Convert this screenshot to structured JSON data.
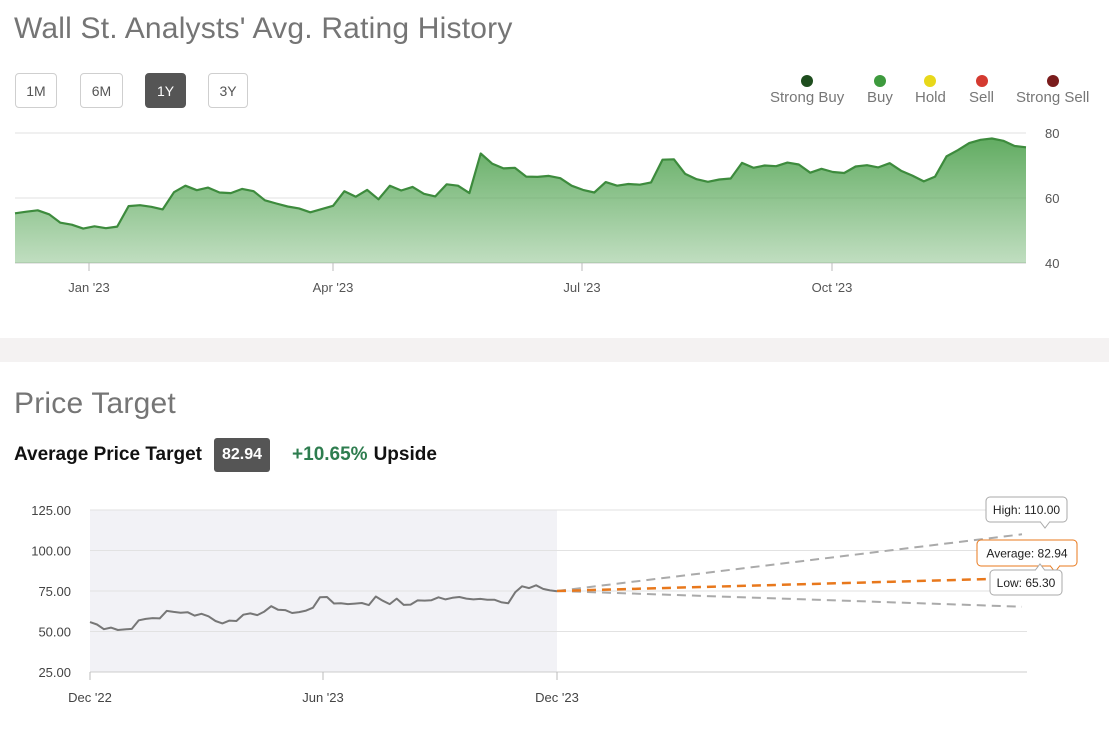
{
  "rating_history": {
    "title": "Wall St. Analysts' Avg. Rating History",
    "ranges": [
      {
        "label": "1M",
        "active": false
      },
      {
        "label": "6M",
        "active": false
      },
      {
        "label": "1Y",
        "active": true
      },
      {
        "label": "3Y",
        "active": false
      }
    ],
    "legend": [
      {
        "label": "Strong Buy",
        "color": "#1e4d1e",
        "icon": "dot"
      },
      {
        "label": "Buy",
        "color": "#3d9a3d",
        "icon": "dot"
      },
      {
        "label": "Hold",
        "color": "#e8d81a",
        "icon": "dot"
      },
      {
        "label": "Sell",
        "color": "#d43a30",
        "icon": "dot"
      },
      {
        "label": "Strong Sell",
        "color": "#7a1c1c",
        "icon": "dot"
      }
    ]
  },
  "price_target": {
    "title": "Price Target",
    "average_label": "Average Price Target",
    "average_value": "82.94",
    "upside_pct": "+10.65%",
    "upside_word": "Upside"
  },
  "chart_data": [
    {
      "type": "area",
      "x_ticks": [
        "Jan '23",
        "Apr '23",
        "Jul '23",
        "Oct '23"
      ],
      "y_ticks": [
        "40",
        "60",
        "80"
      ],
      "ylim": [
        40,
        80
      ],
      "color": "#3d8b3d",
      "values": [
        55.3,
        55.8,
        56.2,
        55.0,
        52.4,
        51.8,
        50.6,
        51.3,
        50.7,
        51.2,
        57.5,
        57.8,
        57.3,
        56.5,
        61.8,
        63.8,
        62.4,
        63.2,
        61.7,
        61.5,
        62.8,
        62.1,
        59.3,
        58.3,
        57.4,
        56.8,
        55.6,
        56.6,
        57.6,
        62.1,
        60.4,
        62.5,
        59.6,
        63.8,
        62.3,
        63.4,
        61.3,
        60.5,
        64.2,
        63.8,
        61.5,
        73.7,
        70.6,
        69.1,
        69.3,
        66.6,
        66.5,
        66.8,
        66.1,
        63.8,
        62.5,
        61.7,
        64.9,
        63.8,
        64.3,
        64.1,
        64.8,
        71.8,
        71.9,
        67.4,
        65.8,
        65.0,
        65.7,
        66.0,
        70.8,
        69.3,
        70.0,
        69.8,
        70.9,
        70.3,
        67.8,
        69.0,
        68.0,
        67.7,
        69.7,
        70.1,
        69.4,
        70.7,
        68.4,
        66.9,
        65.1,
        66.6,
        72.8,
        74.7,
        76.9,
        77.9,
        78.3,
        77.6,
        76.0,
        75.6
      ]
    },
    {
      "type": "line",
      "x_ticks": [
        "Dec '22",
        "Jun '23",
        "Dec '23"
      ],
      "y_ticks": [
        "25.00",
        "50.00",
        "75.00",
        "100.00",
        "125.00"
      ],
      "ylim": [
        25,
        125
      ],
      "series": [
        {
          "color": "#777777",
          "values": [
            55.8,
            54.3,
            51.4,
            52.4,
            50.9,
            51.3,
            51.6,
            56.9,
            57.8,
            58.3,
            58.1,
            62.7,
            62.1,
            61.6,
            61.9,
            59.8,
            60.9,
            59.4,
            56.5,
            55.0,
            56.7,
            56.5,
            60.4,
            61.2,
            60.1,
            62.3,
            65.6,
            63.4,
            63.2,
            61.4,
            62.0,
            62.9,
            64.7,
            71.2,
            71.3,
            67.3,
            67.4,
            66.9,
            67.2,
            67.6,
            66.3,
            71.6,
            69.0,
            66.9,
            70.3,
            66.4,
            66.6,
            69.2,
            69.1,
            69.3,
            71.1,
            69.8,
            70.8,
            71.3,
            70.3,
            69.8,
            70.1,
            69.6,
            69.6,
            68.1,
            67.4,
            74.2,
            77.9,
            76.8,
            78.5,
            76.3,
            75.4,
            74.9
          ]
        }
      ],
      "projection": {
        "start_value": 75.0,
        "high": 110.0,
        "average": 82.94,
        "low": 65.3,
        "labels": {
          "high": "High: 110.00",
          "average": "Average: 82.94",
          "low": "Low: 65.30"
        },
        "colors": {
          "high": "#aaaaaa",
          "average": "#e8781c",
          "low": "#aaaaaa"
        }
      }
    }
  ]
}
